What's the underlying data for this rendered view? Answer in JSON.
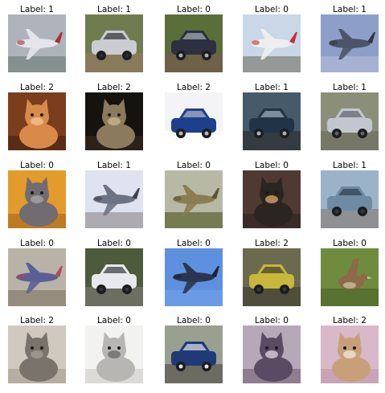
{
  "images": [
    {
      "label": "Label: 1",
      "subject": "airplane",
      "colors": {
        "bg": "#aeb3bc",
        "main": "#e4e4ea",
        "accent": "#b02a3a",
        "ground": "#7f8a86"
      }
    },
    {
      "label": "Label: 1",
      "subject": "car",
      "colors": {
        "bg": "#6f7c4d",
        "main": "#c9ccd0",
        "accent": "#2e2e33",
        "ground": "#8a7a5c"
      }
    },
    {
      "label": "Label: 0",
      "subject": "car",
      "colors": {
        "bg": "#5a6e3a",
        "main": "#2c3040",
        "accent": "#a9b0b8",
        "ground": "#6e6148"
      }
    },
    {
      "label": "Label: 0",
      "subject": "airplane",
      "colors": {
        "bg": "#c9d7e6",
        "main": "#eeeeee",
        "accent": "#c0303a",
        "ground": "#8b8e88"
      }
    },
    {
      "label": "Label: 1",
      "subject": "airplane",
      "colors": {
        "bg": "#8d9fc9",
        "main": "#4b5567",
        "accent": "#2f3848",
        "ground": "#a9b5d6"
      }
    },
    {
      "label": "Label: 2",
      "subject": "cat",
      "colors": {
        "bg": "#7a3d1e",
        "main": "#d98a4a",
        "accent": "#f2c28c",
        "ground": "#5a2c14"
      }
    },
    {
      "label": "Label: 2",
      "subject": "cat",
      "colors": {
        "bg": "#15130f",
        "main": "#8c7a5c",
        "accent": "#c9b48d",
        "ground": "#2a2218"
      }
    },
    {
      "label": "Label: 2",
      "subject": "car",
      "colors": {
        "bg": "#f4f4f6",
        "main": "#1d3f8e",
        "accent": "#b7b9c2",
        "ground": "#ffffff"
      }
    },
    {
      "label": "Label: 1",
      "subject": "car",
      "colors": {
        "bg": "#475a6a",
        "main": "#203448",
        "accent": "#a7b4bf",
        "ground": "#343c42"
      }
    },
    {
      "label": "Label: 1",
      "subject": "car",
      "colors": {
        "bg": "#8b8f7a",
        "main": "#c2c7cf",
        "accent": "#5d636d",
        "ground": "#777767"
      }
    },
    {
      "label": "Label: 0",
      "subject": "cat",
      "colors": {
        "bg": "#e39b2c",
        "main": "#6f6d72",
        "accent": "#a8a4a6",
        "ground": "#c07a1f"
      }
    },
    {
      "label": "Label: 1",
      "subject": "airplane",
      "colors": {
        "bg": "#dfe3ef",
        "main": "#6c7384",
        "accent": "#3e4350",
        "ground": "#a6a0a6"
      }
    },
    {
      "label": "Label: 0",
      "subject": "airplane",
      "colors": {
        "bg": "#b8b9a4",
        "main": "#8b7d52",
        "accent": "#5b5238",
        "ground": "#6a7044"
      }
    },
    {
      "label": "Label: 0",
      "subject": "cat",
      "colors": {
        "bg": "#4f3a33",
        "main": "#2b2522",
        "accent": "#d2a262",
        "ground": "#3a2b26"
      }
    },
    {
      "label": "Label: 1",
      "subject": "car",
      "colors": {
        "bg": "#9bb3c8",
        "main": "#6f8aa3",
        "accent": "#2d3d4e",
        "ground": "#8e9094"
      }
    },
    {
      "label": "Label: 0",
      "subject": "airplane",
      "colors": {
        "bg": "#b9b3a7",
        "main": "#5b5f97",
        "accent": "#b04a5a",
        "ground": "#8f8576"
      }
    },
    {
      "label": "Label: 0",
      "subject": "car",
      "colors": {
        "bg": "#4d5a3b",
        "main": "#e8e9ec",
        "accent": "#33363c",
        "ground": "#6b6e60"
      }
    },
    {
      "label": "Label: 0",
      "subject": "airplane",
      "colors": {
        "bg": "#5d90df",
        "main": "#2c3550",
        "accent": "#1b2236",
        "ground": "#6d9ee6"
      }
    },
    {
      "label": "Label: 2",
      "subject": "car",
      "colors": {
        "bg": "#6b6a4f",
        "main": "#c7b73a",
        "accent": "#3a3a33",
        "ground": "#4f4d3c"
      }
    },
    {
      "label": "Label: 0",
      "subject": "bird",
      "colors": {
        "bg": "#6f8c3e",
        "main": "#8c6a4a",
        "accent": "#d9c7a8",
        "ground": "#587231"
      }
    },
    {
      "label": "Label: 2",
      "subject": "cat",
      "colors": {
        "bg": "#cfc9bf",
        "main": "#7a736c",
        "accent": "#a39b91",
        "ground": "#b6aea2"
      }
    },
    {
      "label": "Label: 0",
      "subject": "cat",
      "colors": {
        "bg": "#f2f2f0",
        "main": "#b7b6b2",
        "accent": "#6e6d6a",
        "ground": "#dcdbd8"
      }
    },
    {
      "label": "Label: 0",
      "subject": "car",
      "colors": {
        "bg": "#9aa08f",
        "main": "#203a78",
        "accent": "#e3e4e6",
        "ground": "#6b6b62"
      }
    },
    {
      "label": "Label: 0",
      "subject": "cat",
      "colors": {
        "bg": "#b7a8b7",
        "main": "#5b4a63",
        "accent": "#d9cfd9",
        "ground": "#8f7c8f"
      }
    },
    {
      "label": "Label: 2",
      "subject": "cat",
      "colors": {
        "bg": "#d9b8c9",
        "main": "#c7a07a",
        "accent": "#f0e2d6",
        "ground": "#caa4b6"
      }
    }
  ]
}
